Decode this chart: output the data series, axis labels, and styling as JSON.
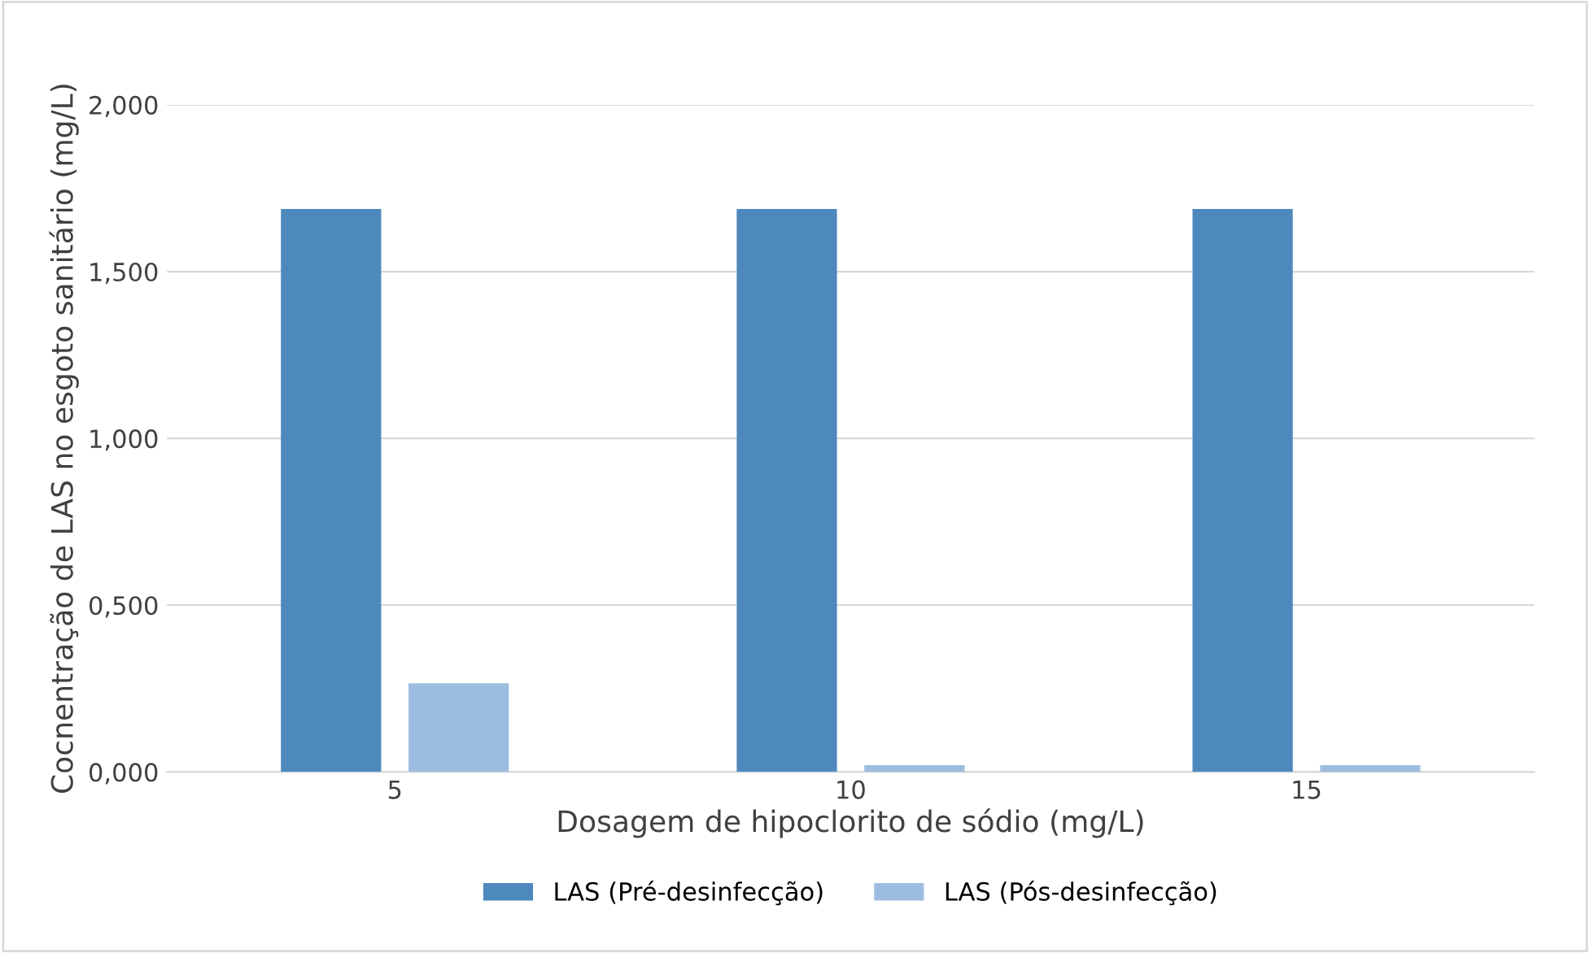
{
  "chart_data": {
    "type": "bar",
    "xlabel": "Dosagem de hipoclorito de sódio (mg/L)",
    "ylabel": "Cocnentração de LAS no esgoto sanitário (mg/L)",
    "categories": [
      "5",
      "10",
      "15"
    ],
    "series": [
      {
        "name": "LAS (Pré-desinfecção)",
        "color": "#4e89bd",
        "values": [
          1.688,
          1.688,
          1.688
        ]
      },
      {
        "name": "LAS (Pós-desinfecção)",
        "color": "#9dbde0",
        "values": [
          0.266,
          0.02,
          0.02
        ]
      }
    ],
    "ylim": [
      0,
      2.0
    ],
    "yticks": [
      {
        "value": 0,
        "label": "0,000"
      },
      {
        "value": 0.5,
        "label": "0,500"
      },
      {
        "value": 1.0,
        "label": "1,000"
      },
      {
        "value": 1.5,
        "label": "1,500"
      },
      {
        "value": 2.0,
        "label": "2,000"
      }
    ],
    "grid": "y",
    "legend": "bottom"
  }
}
